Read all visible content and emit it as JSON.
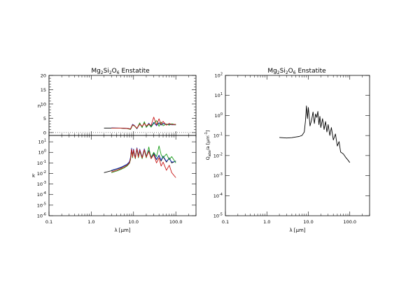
{
  "chart_data": [
    {
      "id": "left",
      "type": "line",
      "title_main": "Mg",
      "title_sub1": "2",
      "title_mid1": "Si",
      "title_sub2": "2",
      "title_mid2": "O",
      "title_sub3": "6",
      "title_tail": " Enstatite",
      "xlabel": "λ [μm]",
      "x_scale": "log",
      "xlim": [
        0.1,
        300
      ],
      "x_ticks": [
        {
          "v": 0.1,
          "label": "0.1"
        },
        {
          "v": 1,
          "label": "1.0"
        },
        {
          "v": 10,
          "label": "10.0"
        },
        {
          "v": 100,
          "label": "100.0"
        }
      ],
      "panels": [
        {
          "id": "n",
          "ylabel": "n",
          "y_scale": "linear",
          "ylim": [
            -1,
            20
          ],
          "y_ticks": [
            0,
            5,
            10,
            15,
            20
          ],
          "series": [
            {
              "color": "#000000",
              "x": [
                2,
                5,
                7,
                8.5,
                9.5,
                10.5,
                12,
                14,
                16,
                18,
                20,
                23,
                26,
                30,
                35,
                40,
                45,
                50,
                60,
                70,
                80,
                100
              ],
              "y": [
                1.6,
                1.55,
                1.45,
                1.3,
                2.8,
                2.4,
                1.5,
                3.0,
                2.1,
                3.3,
                2.2,
                3.1,
                2.3,
                3.4,
                2.6,
                3.3,
                2.7,
                3.1,
                2.9,
                2.8,
                2.75,
                2.7
              ]
            },
            {
              "color": "#1f3fbf",
              "x": [
                3,
                5,
                7,
                8.5,
                9.5,
                10.5,
                12,
                14,
                16,
                18,
                20,
                23,
                26,
                30,
                35,
                40,
                45,
                50,
                60,
                70,
                80,
                100
              ],
              "y": [
                1.65,
                1.6,
                1.5,
                1.2,
                2.9,
                2.5,
                1.3,
                3.1,
                1.9,
                3.5,
                2.0,
                3.3,
                2.1,
                3.6,
                2.4,
                3.5,
                2.6,
                3.2,
                2.8,
                2.9,
                2.7,
                2.8
              ]
            },
            {
              "color": "#1a9e1a",
              "x": [
                3,
                5,
                7,
                8.5,
                9.5,
                10.5,
                12,
                14,
                16,
                18,
                20,
                23,
                26,
                30,
                35,
                40,
                45,
                50,
                60,
                70,
                80,
                100
              ],
              "y": [
                1.6,
                1.55,
                1.4,
                1.1,
                2.6,
                2.3,
                1.4,
                3.4,
                1.7,
                3.8,
                1.8,
                2.9,
                1.9,
                3.2,
                4.2,
                2.2,
                3.7,
                2.4,
                3.0,
                2.6,
                3.1,
                2.7
              ]
            },
            {
              "color": "#c81818",
              "x": [
                3,
                5,
                7,
                8.5,
                9.5,
                10.5,
                12,
                14,
                16,
                18,
                20,
                23,
                26,
                30,
                35,
                40,
                45,
                50,
                60,
                70,
                80,
                100
              ],
              "y": [
                1.6,
                1.55,
                1.45,
                1.25,
                2.7,
                2.4,
                1.5,
                2.9,
                2.2,
                3.2,
                2.3,
                3.0,
                2.5,
                5.4,
                2.7,
                4.8,
                2.8,
                3.9,
                2.6,
                3.2,
                2.8,
                2.9
              ]
            }
          ]
        },
        {
          "id": "k",
          "ylabel": "k",
          "y_scale": "log",
          "ylim": [
            1e-06,
            40
          ],
          "y_ticks": [
            {
              "v": 1e-06,
              "b": "10",
              "e": "-6"
            },
            {
              "v": 1e-05,
              "b": "10",
              "e": "-5"
            },
            {
              "v": 0.0001,
              "b": "10",
              "e": "-4"
            },
            {
              "v": 0.001,
              "b": "10",
              "e": "-3"
            },
            {
              "v": 0.01,
              "b": "10",
              "e": "-2"
            },
            {
              "v": 0.1,
              "b": "10",
              "e": "-1"
            },
            {
              "v": 1,
              "b": "10",
              "e": "0"
            },
            {
              "v": 10,
              "b": "10",
              "e": "1"
            }
          ],
          "series": [
            {
              "color": "#000000",
              "x": [
                2,
                3,
                4,
                5,
                6,
                7,
                8,
                8.5,
                9,
                9.5,
                10,
                10.5,
                11,
                12,
                13,
                14,
                16,
                18,
                20,
                23,
                26,
                30,
                35,
                40,
                45,
                50,
                60,
                70,
                80,
                100
              ],
              "y": [
                0.012,
                0.018,
                0.026,
                0.035,
                0.05,
                0.07,
                0.12,
                0.3,
                2.2,
                0.4,
                1.9,
                0.6,
                0.3,
                2.5,
                0.4,
                1.8,
                0.3,
                2.0,
                0.4,
                1.4,
                0.3,
                0.8,
                0.2,
                0.5,
                0.15,
                0.4,
                0.12,
                0.3,
                0.1,
                0.15
              ]
            },
            {
              "color": "#1f3fbf",
              "x": [
                3,
                4,
                5,
                6,
                7,
                8,
                8.5,
                9,
                9.5,
                10,
                10.5,
                11,
                12,
                13,
                14,
                16,
                18,
                20,
                23,
                26,
                30,
                35,
                40,
                45,
                50,
                60,
                70,
                80,
                100
              ],
              "y": [
                0.02,
                0.028,
                0.038,
                0.055,
                0.075,
                0.13,
                0.35,
                2.5,
                0.5,
                2.1,
                0.7,
                0.35,
                2.7,
                0.5,
                2.0,
                0.35,
                2.2,
                0.45,
                1.5,
                0.35,
                0.9,
                0.22,
                0.55,
                0.18,
                0.45,
                0.14,
                0.28,
                0.12,
                0.14
              ]
            },
            {
              "color": "#1a9e1a",
              "x": [
                3,
                4,
                5,
                6,
                7,
                8,
                8.5,
                9,
                9.5,
                10,
                10.5,
                11,
                12,
                13,
                14,
                16,
                18,
                20,
                23,
                26,
                30,
                35,
                40,
                45,
                50,
                60,
                70,
                80,
                100
              ],
              "y": [
                0.012,
                0.017,
                0.024,
                0.034,
                0.05,
                0.09,
                0.2,
                1.6,
                0.3,
                1.4,
                0.5,
                0.25,
                2.0,
                0.3,
                1.3,
                0.25,
                1.6,
                0.3,
                3.2,
                0.25,
                1.0,
                0.4,
                4.0,
                0.6,
                0.3,
                0.7,
                0.2,
                0.4,
                0.1
              ]
            },
            {
              "color": "#c81818",
              "x": [
                3,
                4,
                5,
                6,
                7,
                8,
                8.5,
                9,
                9.5,
                10,
                10.5,
                11,
                12,
                13,
                14,
                16,
                18,
                20,
                23,
                26,
                30,
                35,
                40,
                45,
                50,
                60,
                70,
                80,
                100
              ],
              "y": [
                0.014,
                0.02,
                0.028,
                0.04,
                0.058,
                0.1,
                0.25,
                2.0,
                0.35,
                1.7,
                0.55,
                0.28,
                2.3,
                0.35,
                1.6,
                0.3,
                1.8,
                0.35,
                1.2,
                0.25,
                0.6,
                0.1,
                0.3,
                0.05,
                0.12,
                0.02,
                0.06,
                0.012,
                0.004
              ]
            }
          ]
        }
      ]
    },
    {
      "id": "right",
      "type": "line",
      "title_main": "Mg",
      "title_sub1": "2",
      "title_mid1": "Si",
      "title_sub2": "2",
      "title_mid2": "O",
      "title_sub3": "6",
      "title_tail": " Enstatite",
      "xlabel": "λ [μm]",
      "ylabel_pre": "Q",
      "ylabel_sub": "abs",
      "ylabel_mid": "/a [μm",
      "ylabel_sup": "-1",
      "ylabel_post": "]",
      "x_scale": "log",
      "xlim": [
        0.1,
        300
      ],
      "x_ticks": [
        {
          "v": 0.1,
          "label": "0.1"
        },
        {
          "v": 1,
          "label": "1.0"
        },
        {
          "v": 10,
          "label": "10.0"
        },
        {
          "v": 100,
          "label": "100.0"
        }
      ],
      "y_scale": "log",
      "ylim": [
        1e-05,
        100
      ],
      "y_ticks": [
        {
          "v": 1e-05,
          "b": "10",
          "e": "-5"
        },
        {
          "v": 0.0001,
          "b": "10",
          "e": "-4"
        },
        {
          "v": 0.001,
          "b": "10",
          "e": "-3"
        },
        {
          "v": 0.01,
          "b": "10",
          "e": "-2"
        },
        {
          "v": 0.1,
          "b": "10",
          "e": "-1"
        },
        {
          "v": 1,
          "b": "10",
          "e": "0"
        },
        {
          "v": 10,
          "b": "10",
          "e": "1"
        },
        {
          "v": 100,
          "b": "10",
          "e": "2"
        }
      ],
      "series": [
        {
          "color": "#000000",
          "x": [
            2,
            3,
            4,
            5,
            6,
            7,
            8,
            8.5,
            9,
            9.5,
            10,
            10.5,
            11,
            12,
            13,
            14,
            15,
            16,
            17,
            18,
            19,
            20,
            22,
            24,
            26,
            28,
            30,
            33,
            36,
            40,
            45,
            50,
            55,
            60,
            70,
            80,
            90,
            100
          ],
          "y": [
            0.08,
            0.075,
            0.078,
            0.085,
            0.09,
            0.1,
            0.15,
            0.5,
            3.0,
            0.7,
            2.5,
            0.9,
            0.3,
            0.6,
            1.5,
            0.4,
            1.2,
            0.8,
            1.6,
            0.35,
            0.9,
            0.25,
            0.7,
            0.2,
            0.5,
            0.15,
            0.35,
            0.1,
            0.25,
            0.06,
            0.12,
            0.03,
            0.05,
            0.015,
            0.012,
            0.008,
            0.006,
            0.0045
          ]
        }
      ]
    }
  ]
}
